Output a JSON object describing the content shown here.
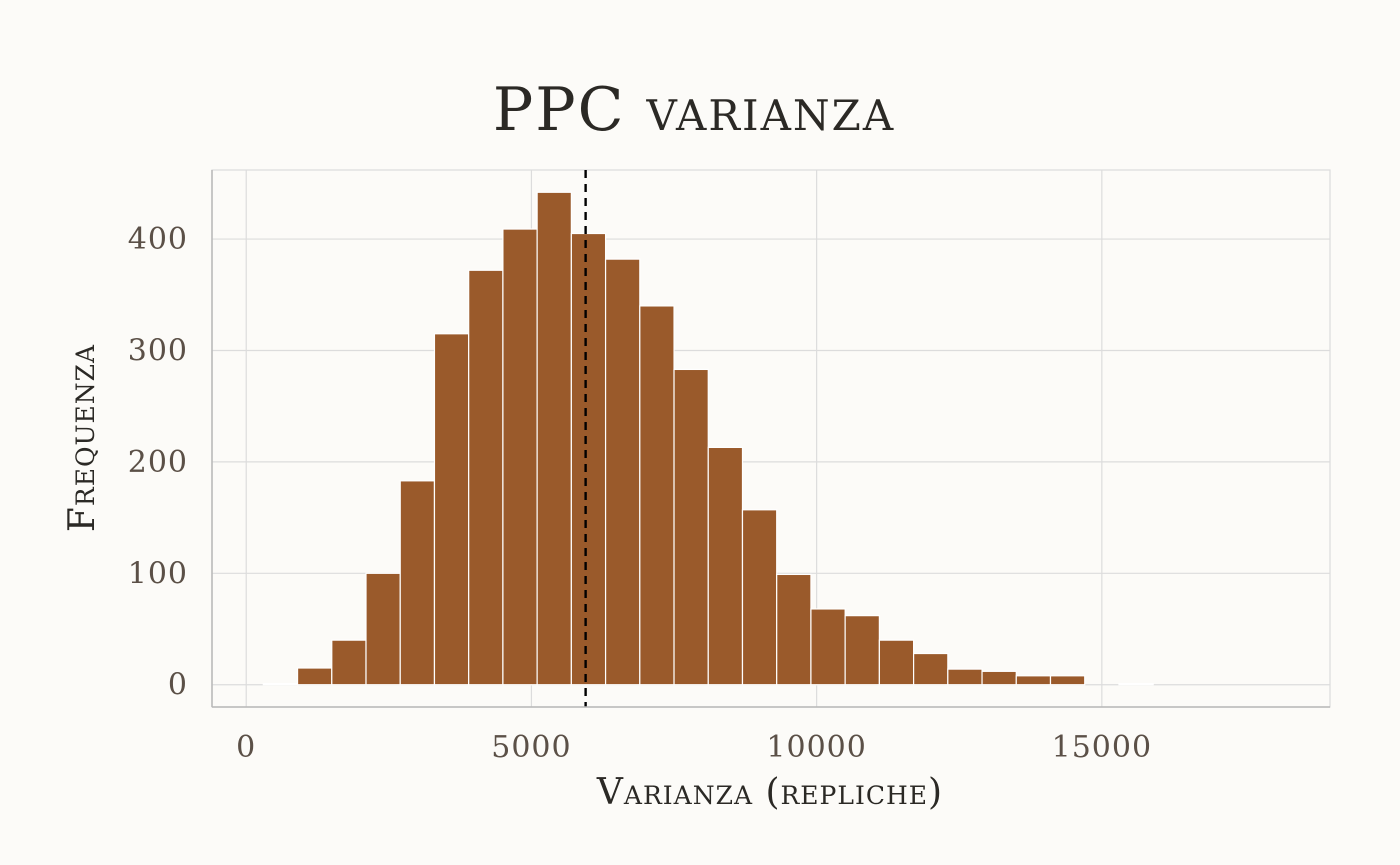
{
  "colors": {
    "bar_fill": "#9a5a2b",
    "background": "#fcfbf8",
    "reference_line": "#000000"
  },
  "chart_data": {
    "type": "bar",
    "title": "PPC varianza",
    "xlabel": "Varianza (repliche)",
    "ylabel": "Frequenza",
    "xlim": [
      -600,
      19000
    ],
    "ylim": [
      -20,
      462
    ],
    "x_ticks": [
      0,
      5000,
      10000,
      15000
    ],
    "x_tick_labels": [
      "0",
      "5000",
      "10000",
      "15000"
    ],
    "y_ticks": [
      0,
      100,
      200,
      300,
      400
    ],
    "y_tick_labels": [
      "0",
      "100",
      "200",
      "300",
      "400"
    ],
    "grid": true,
    "bin_width": 600,
    "bins": [
      {
        "x0": 300,
        "x1": 900,
        "count": 1
      },
      {
        "x0": 900,
        "x1": 1500,
        "count": 15
      },
      {
        "x0": 1500,
        "x1": 2100,
        "count": 40
      },
      {
        "x0": 2100,
        "x1": 2700,
        "count": 100
      },
      {
        "x0": 2700,
        "x1": 3300,
        "count": 183
      },
      {
        "x0": 3300,
        "x1": 3900,
        "count": 315
      },
      {
        "x0": 3900,
        "x1": 4500,
        "count": 372
      },
      {
        "x0": 4500,
        "x1": 5100,
        "count": 409
      },
      {
        "x0": 5100,
        "x1": 5700,
        "count": 442
      },
      {
        "x0": 5700,
        "x1": 6300,
        "count": 405
      },
      {
        "x0": 6300,
        "x1": 6900,
        "count": 382
      },
      {
        "x0": 6900,
        "x1": 7500,
        "count": 340
      },
      {
        "x0": 7500,
        "x1": 8100,
        "count": 283
      },
      {
        "x0": 8100,
        "x1": 8700,
        "count": 213
      },
      {
        "x0": 8700,
        "x1": 9300,
        "count": 157
      },
      {
        "x0": 9300,
        "x1": 9900,
        "count": 99
      },
      {
        "x0": 9900,
        "x1": 10500,
        "count": 68
      },
      {
        "x0": 10500,
        "x1": 11100,
        "count": 62
      },
      {
        "x0": 11100,
        "x1": 11700,
        "count": 40
      },
      {
        "x0": 11700,
        "x1": 12300,
        "count": 28
      },
      {
        "x0": 12300,
        "x1": 12900,
        "count": 14
      },
      {
        "x0": 12900,
        "x1": 13500,
        "count": 12
      },
      {
        "x0": 13500,
        "x1": 14100,
        "count": 8
      },
      {
        "x0": 14100,
        "x1": 14700,
        "count": 8
      },
      {
        "x0": 14700,
        "x1": 15300,
        "count": 0
      },
      {
        "x0": 15300,
        "x1": 15900,
        "count": 1
      },
      {
        "x0": 15900,
        "x1": 16500,
        "count": 0
      },
      {
        "x0": 16500,
        "x1": 17100,
        "count": 0
      },
      {
        "x0": 17100,
        "x1": 17700,
        "count": 0
      },
      {
        "x0": 17700,
        "x1": 18300,
        "count": 0
      }
    ],
    "reference_line": {
      "x": 5950,
      "style": "dashed"
    }
  }
}
